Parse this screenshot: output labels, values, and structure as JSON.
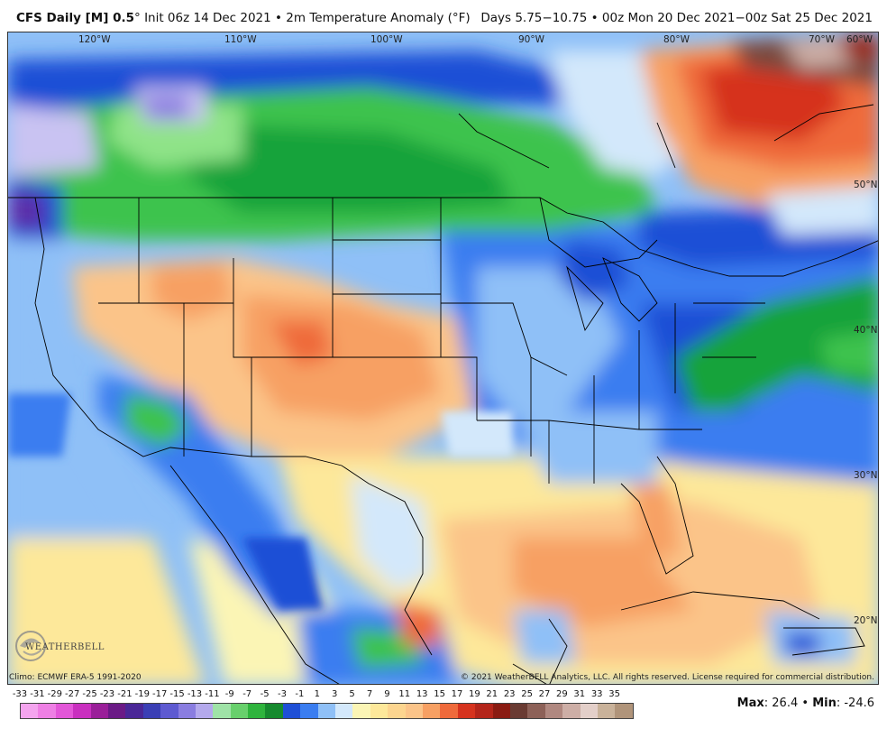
{
  "header": {
    "model": "CFS Daily [M] 0.5",
    "degree": "°",
    "init": "Init 06z 14 Dec 2021",
    "bullet": "•",
    "field": "2m Temperature Anomaly (°F)",
    "days": "Days 5.75−10.75 • 00z Mon 20 Dec 2021−00z Sat 25 Dec 2021"
  },
  "map": {
    "lon_labels": [
      "120°W",
      "110°W",
      "100°W",
      "90°W",
      "80°W",
      "70°W",
      "60°W"
    ],
    "lat_labels": [
      "50°N",
      "40°N",
      "30°N",
      "20°N"
    ],
    "icons": [
      "weatherbell-logo-icon"
    ],
    "colors": {
      "deep_purple": "#5b2fa8",
      "purple": "#8a7de0",
      "lavender": "#c9c3f2",
      "dark_blue": "#1f4fd6",
      "blue": "#3a7df0",
      "light_blue": "#8fc0f7",
      "pale_blue": "#d3e8fb",
      "green_dark": "#16a33a",
      "green": "#3cc34e",
      "green_light": "#8fe388",
      "pale_yellow": "#fbf5b5",
      "yellow": "#fde89a",
      "orange_light": "#fbc489",
      "orange": "#f7a063",
      "red_orange": "#ef6a3b",
      "red": "#d6331e",
      "dark_red": "#9b2514",
      "brown": "#7a4a3e"
    }
  },
  "footer": {
    "climo": "Climo: ECMWF ERA-5 1991-2020",
    "copyright": "© 2021 WeatherBELL Analytics, LLC. All rights reserved. License required for commercial distribution.",
    "logo_text": "WEATHERBELL",
    "max_label": "Max",
    "max_value": "26.4",
    "min_label": "Min",
    "min_value": "-24.6",
    "separator": "•"
  },
  "colorbar": {
    "ticks": [
      "-33",
      "-31",
      "-29",
      "-27",
      "-25",
      "-23",
      "-21",
      "-19",
      "-17",
      "-15",
      "-13",
      "-11",
      "-9",
      "-7",
      "-5",
      "-3",
      "-1",
      "1",
      "3",
      "5",
      "7",
      "9",
      "11",
      "13",
      "15",
      "17",
      "19",
      "21",
      "23",
      "25",
      "27",
      "29",
      "31",
      "33",
      "35"
    ],
    "colors": [
      "#f4a4ee",
      "#ee7fe4",
      "#e356d8",
      "#c92fbf",
      "#9a1f99",
      "#6b1a86",
      "#4a2797",
      "#3b3fb5",
      "#5e5ad1",
      "#8a7de0",
      "#b4a9ec",
      "#9fe3a7",
      "#68d06c",
      "#2fb43d",
      "#168a2e",
      "#1f4fd6",
      "#3a7df0",
      "#8fc0f7",
      "#d3e8fb",
      "#fbf5b5",
      "#fde89a",
      "#fcd58f",
      "#fbc489",
      "#f7a063",
      "#ef6a3b",
      "#d6331e",
      "#b4251a",
      "#8a1b12",
      "#6a3b33",
      "#8d6158",
      "#b08880",
      "#cdaea6",
      "#e3cfc9",
      "#c9b29a",
      "#b0947a"
    ]
  }
}
